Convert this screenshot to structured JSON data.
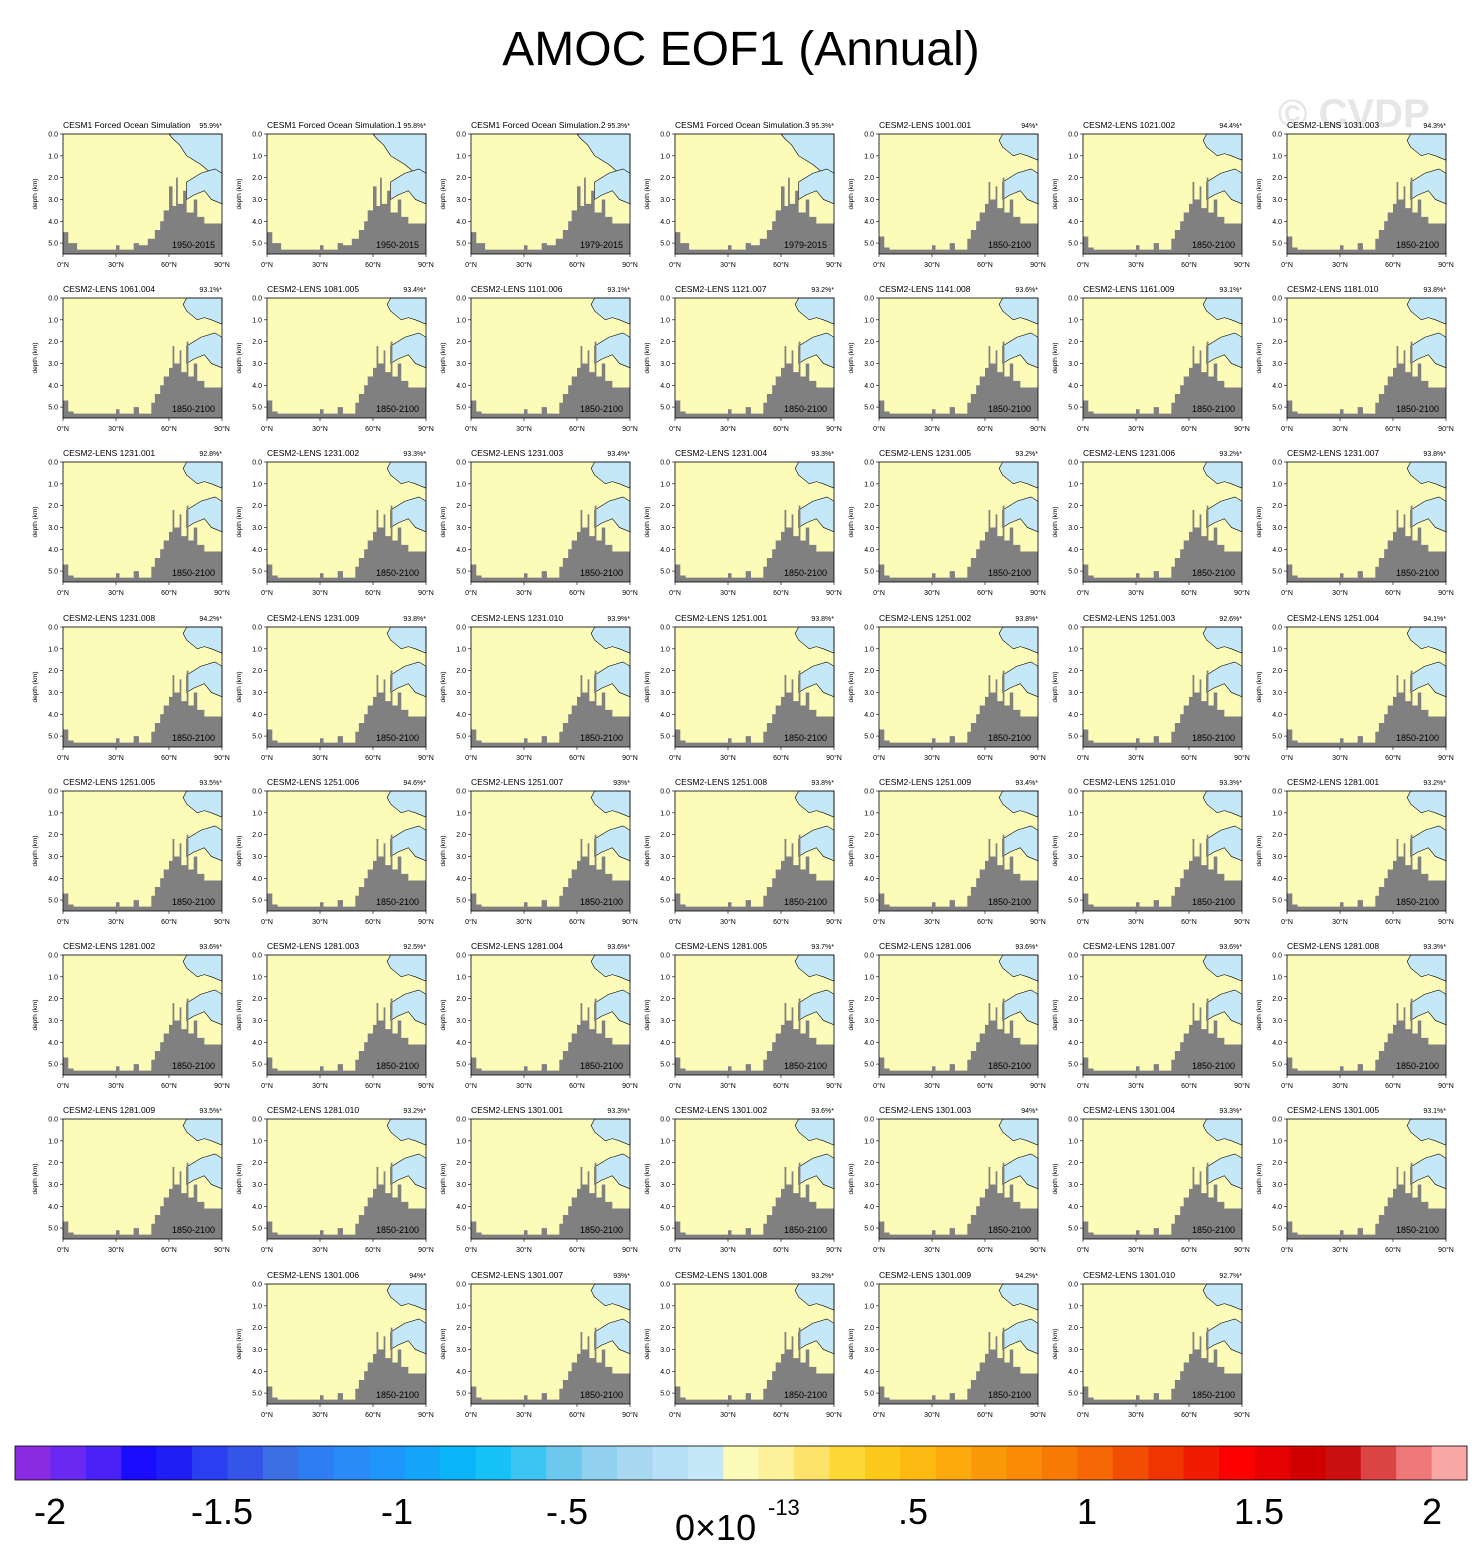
{
  "title": "AMOC EOF1 (Annual)",
  "watermark": "© CVDP",
  "chart_data": {
    "type": "heatmap",
    "title": "AMOC EOF1 (Annual)",
    "panel_ylabel": "depth (km)",
    "y_ticks": [
      "0.0",
      "1.0",
      "2.0",
      "3.0",
      "4.0",
      "5.0"
    ],
    "x_ticks": [
      "0°N",
      "30°N",
      "60°N",
      "90°N"
    ],
    "xlim": [
      0,
      90
    ],
    "ylim": [
      0,
      5.5
    ],
    "colorbar": {
      "ticks": [
        "-2",
        "-1.5",
        "-1",
        "-.5",
        "0",
        "x10",
        "-13",
        ".5",
        "1",
        "1.5",
        "2"
      ],
      "scale_label": "0×10",
      "scale_exponent": "-13",
      "colors": [
        "#8a2be2",
        "#6a29f0",
        "#4b22f5",
        "#1a0cff",
        "#1e1ef5",
        "#2a3ff0",
        "#3554e8",
        "#3c6ee4",
        "#2f7df2",
        "#2a8bf7",
        "#1f96fa",
        "#14a5fb",
        "#0ab4f8",
        "#16c1f7",
        "#3cc4f3",
        "#6dc8ee",
        "#91d0ef",
        "#a8d7f2",
        "#b7dff5",
        "#c4e8f8",
        "#fdfbb8",
        "#fdf29a",
        "#fde36a",
        "#fdd835",
        "#fdc91a",
        "#fcb912",
        "#fba90c",
        "#fa9a09",
        "#f98b07",
        "#f77a05",
        "#f56604",
        "#f24e03",
        "#ef3502",
        "#f01c01",
        "#ff0000",
        "#e70000",
        "#d10000",
        "#c90f0f",
        "#dd4444",
        "#ee7777",
        "#f9a6a6"
      ]
    },
    "panels": [
      {
        "name": "CESM1 Forced Ocean Simulation",
        "pct": "95.9%*",
        "years": "1950-2015",
        "variant": "forced"
      },
      {
        "name": "CESM1 Forced Ocean Simulation.1",
        "pct": "95.8%*",
        "years": "1950-2015",
        "variant": "forced"
      },
      {
        "name": "CESM1 Forced Ocean Simulation.2",
        "pct": "95.3%*",
        "years": "1979-2015",
        "variant": "forced"
      },
      {
        "name": "CESM1 Forced Ocean Simulation.3",
        "pct": "95.3%*",
        "years": "1979-2015",
        "variant": "forced"
      },
      {
        "name": "CESM2-LENS 1001.001",
        "pct": "94%*",
        "years": "1850-2100",
        "variant": "lens"
      },
      {
        "name": "CESM2-LENS 1021.002",
        "pct": "94.4%*",
        "years": "1850-2100",
        "variant": "lens"
      },
      {
        "name": "CESM2-LENS 1031.003",
        "pct": "94.3%*",
        "years": "1850-2100",
        "variant": "lens"
      },
      {
        "name": "CESM2-LENS 1061.004",
        "pct": "93.1%*",
        "years": "1850-2100",
        "variant": "lens"
      },
      {
        "name": "CESM2-LENS 1081.005",
        "pct": "93.4%*",
        "years": "1850-2100",
        "variant": "lens"
      },
      {
        "name": "CESM2-LENS 1101.006",
        "pct": "93.1%*",
        "years": "1850-2100",
        "variant": "lens"
      },
      {
        "name": "CESM2-LENS 1121.007",
        "pct": "93.2%*",
        "years": "1850-2100",
        "variant": "lens"
      },
      {
        "name": "CESM2-LENS 1141.008",
        "pct": "93.6%*",
        "years": "1850-2100",
        "variant": "lens"
      },
      {
        "name": "CESM2-LENS 1161.009",
        "pct": "93.1%*",
        "years": "1850-2100",
        "variant": "lens"
      },
      {
        "name": "CESM2-LENS 1181.010",
        "pct": "93.8%*",
        "years": "1850-2100",
        "variant": "lens"
      },
      {
        "name": "CESM2-LENS 1231.001",
        "pct": "92.8%*",
        "years": "1850-2100",
        "variant": "lens"
      },
      {
        "name": "CESM2-LENS 1231.002",
        "pct": "93.3%*",
        "years": "1850-2100",
        "variant": "lens"
      },
      {
        "name": "CESM2-LENS 1231.003",
        "pct": "93.4%*",
        "years": "1850-2100",
        "variant": "lens"
      },
      {
        "name": "CESM2-LENS 1231.004",
        "pct": "93.3%*",
        "years": "1850-2100",
        "variant": "lens"
      },
      {
        "name": "CESM2-LENS 1231.005",
        "pct": "93.2%*",
        "years": "1850-2100",
        "variant": "lens"
      },
      {
        "name": "CESM2-LENS 1231.006",
        "pct": "93.2%*",
        "years": "1850-2100",
        "variant": "lens"
      },
      {
        "name": "CESM2-LENS 1231.007",
        "pct": "93.8%*",
        "years": "1850-2100",
        "variant": "lens"
      },
      {
        "name": "CESM2-LENS 1231.008",
        "pct": "94.2%*",
        "years": "1850-2100",
        "variant": "lens"
      },
      {
        "name": "CESM2-LENS 1231.009",
        "pct": "93.8%*",
        "years": "1850-2100",
        "variant": "lens"
      },
      {
        "name": "CESM2-LENS 1231.010",
        "pct": "93.9%*",
        "years": "1850-2100",
        "variant": "lens"
      },
      {
        "name": "CESM2-LENS 1251.001",
        "pct": "93.8%*",
        "years": "1850-2100",
        "variant": "lens"
      },
      {
        "name": "CESM2-LENS 1251.002",
        "pct": "93.8%*",
        "years": "1850-2100",
        "variant": "lens"
      },
      {
        "name": "CESM2-LENS 1251.003",
        "pct": "92.6%*",
        "years": "1850-2100",
        "variant": "lens"
      },
      {
        "name": "CESM2-LENS 1251.004",
        "pct": "94.1%*",
        "years": "1850-2100",
        "variant": "lens"
      },
      {
        "name": "CESM2-LENS 1251.005",
        "pct": "93.5%*",
        "years": "1850-2100",
        "variant": "lens"
      },
      {
        "name": "CESM2-LENS 1251.006",
        "pct": "94.6%*",
        "years": "1850-2100",
        "variant": "lens"
      },
      {
        "name": "CESM2-LENS 1251.007",
        "pct": "93%*",
        "years": "1850-2100",
        "variant": "lens"
      },
      {
        "name": "CESM2-LENS 1251.008",
        "pct": "93.8%*",
        "years": "1850-2100",
        "variant": "lens"
      },
      {
        "name": "CESM2-LENS 1251.009",
        "pct": "93.4%*",
        "years": "1850-2100",
        "variant": "lens"
      },
      {
        "name": "CESM2-LENS 1251.010",
        "pct": "93.3%*",
        "years": "1850-2100",
        "variant": "lens"
      },
      {
        "name": "CESM2-LENS 1281.001",
        "pct": "93.2%*",
        "years": "1850-2100",
        "variant": "lens"
      },
      {
        "name": "CESM2-LENS 1281.002",
        "pct": "93.6%*",
        "years": "1850-2100",
        "variant": "lens"
      },
      {
        "name": "CESM2-LENS 1281.003",
        "pct": "92.5%*",
        "years": "1850-2100",
        "variant": "lens"
      },
      {
        "name": "CESM2-LENS 1281.004",
        "pct": "93.6%*",
        "years": "1850-2100",
        "variant": "lens"
      },
      {
        "name": "CESM2-LENS 1281.005",
        "pct": "93.7%*",
        "years": "1850-2100",
        "variant": "lens"
      },
      {
        "name": "CESM2-LENS 1281.006",
        "pct": "93.6%*",
        "years": "1850-2100",
        "variant": "lens"
      },
      {
        "name": "CESM2-LENS 1281.007",
        "pct": "93.6%*",
        "years": "1850-2100",
        "variant": "lens"
      },
      {
        "name": "CESM2-LENS 1281.008",
        "pct": "93.3%*",
        "years": "1850-2100",
        "variant": "lens"
      },
      {
        "name": "CESM2-LENS 1281.009",
        "pct": "93.5%*",
        "years": "1850-2100",
        "variant": "lens"
      },
      {
        "name": "CESM2-LENS 1281.010",
        "pct": "93.2%*",
        "years": "1850-2100",
        "variant": "lens"
      },
      {
        "name": "CESM2-LENS 1301.001",
        "pct": "93.3%*",
        "years": "1850-2100",
        "variant": "lens"
      },
      {
        "name": "CESM2-LENS 1301.002",
        "pct": "93.6%*",
        "years": "1850-2100",
        "variant": "lens"
      },
      {
        "name": "CESM2-LENS 1301.003",
        "pct": "94%*",
        "years": "1850-2100",
        "variant": "lens"
      },
      {
        "name": "CESM2-LENS 1301.004",
        "pct": "93.3%*",
        "years": "1850-2100",
        "variant": "lens"
      },
      {
        "name": "CESM2-LENS 1301.005",
        "pct": "93.1%*",
        "years": "1850-2100",
        "variant": "lens"
      },
      {
        "name": "CESM2-LENS 1301.006",
        "pct": "94%*",
        "years": "1850-2100",
        "variant": "lens"
      },
      {
        "name": "CESM2-LENS 1301.007",
        "pct": "93%*",
        "years": "1850-2100",
        "variant": "lens"
      },
      {
        "name": "CESM2-LENS 1301.008",
        "pct": "93.2%*",
        "years": "1850-2100",
        "variant": "lens"
      },
      {
        "name": "CESM2-LENS 1301.009",
        "pct": "94.2%*",
        "years": "1850-2100",
        "variant": "lens"
      },
      {
        "name": "CESM2-LENS 1301.010",
        "pct": "92.7%*",
        "years": "1850-2100",
        "variant": "lens"
      }
    ]
  }
}
